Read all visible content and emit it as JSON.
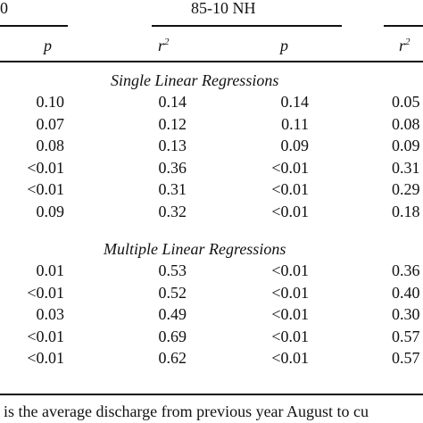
{
  "header": {
    "left_group_fragment": "0",
    "group_title": "85-10 NH",
    "columns": [
      {
        "symbol": "p",
        "sup": ""
      },
      {
        "symbol": "r",
        "sup": "2"
      },
      {
        "symbol": "p",
        "sup": ""
      },
      {
        "symbol": "r",
        "sup": "2"
      }
    ]
  },
  "sections": {
    "single": {
      "title": "Single Linear Regressions",
      "rows": [
        [
          "0.10",
          "0.14",
          "0.14",
          "0.05"
        ],
        [
          "0.07",
          "0.12",
          "0.11",
          "0.08"
        ],
        [
          "0.08",
          "0.13",
          "0.09",
          "0.09"
        ],
        [
          "<0.01",
          "0.36",
          "<0.01",
          "0.31"
        ],
        [
          "<0.01",
          "0.31",
          "<0.01",
          "0.29"
        ],
        [
          "0.09",
          "0.32",
          "<0.01",
          "0.18"
        ]
      ]
    },
    "multiple": {
      "title": "Multiple Linear Regressions",
      "rows": [
        [
          "0.01",
          "0.53",
          "<0.01",
          "0.36"
        ],
        [
          "<0.01",
          "0.52",
          "<0.01",
          "0.40"
        ],
        [
          "0.03",
          "0.49",
          "<0.01",
          "0.30"
        ],
        [
          "<0.01",
          "0.69",
          "<0.01",
          "0.57"
        ],
        [
          "<0.01",
          "0.62",
          "<0.01",
          "0.57"
        ]
      ]
    }
  },
  "footnote": "is the average discharge from previous year August to cu"
}
